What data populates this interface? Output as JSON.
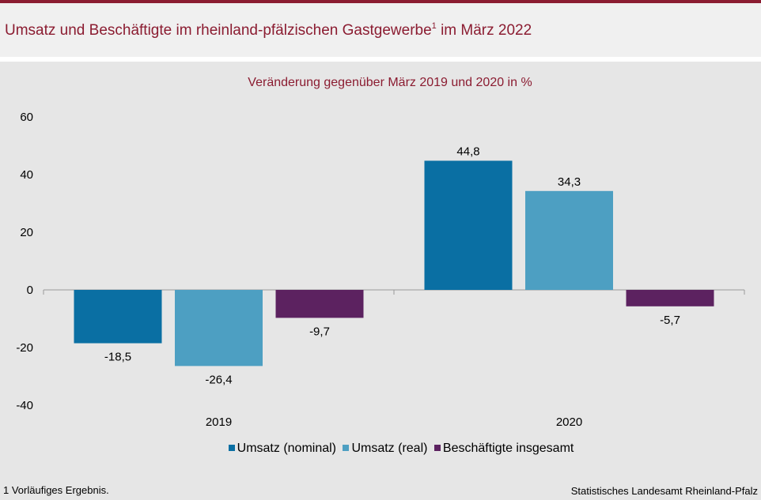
{
  "header": {
    "title": "Umsatz und Beschäftigte im rheinland-pfälzischen Gastgewerbe",
    "title_sup": "1",
    "title_suffix": " im März 2022"
  },
  "footer": {
    "footnote": "1 Vorläufiges  Ergebnis.",
    "source": "Statistisches Landesamt  Rheinland-Pfalz"
  },
  "colors": {
    "accent": "#8b1c31",
    "series": [
      "#0a6fa3",
      "#4d9fc2",
      "#5c2260"
    ]
  },
  "chart_data": {
    "type": "bar",
    "title": "Veränderung gegenüber März 2019 und 2020 in %",
    "categories": [
      "2019",
      "2020"
    ],
    "series": [
      {
        "name": "Umsatz (nominal)",
        "values": [
          -18.5,
          44.8
        ],
        "labels": [
          "-18,5",
          "44,8"
        ]
      },
      {
        "name": "Umsatz (real)",
        "values": [
          -26.4,
          34.3
        ],
        "labels": [
          "-26,4",
          "34,3"
        ]
      },
      {
        "name": "Beschäftigte insgesamt",
        "values": [
          -9.7,
          -5.7
        ],
        "labels": [
          "-9,7",
          "-5,7"
        ]
      }
    ],
    "ylim": [
      -40,
      60
    ],
    "yticks": [
      "60",
      "40",
      "20",
      "0",
      "-20",
      "-40"
    ],
    "grid": false,
    "legend": "bottom"
  }
}
